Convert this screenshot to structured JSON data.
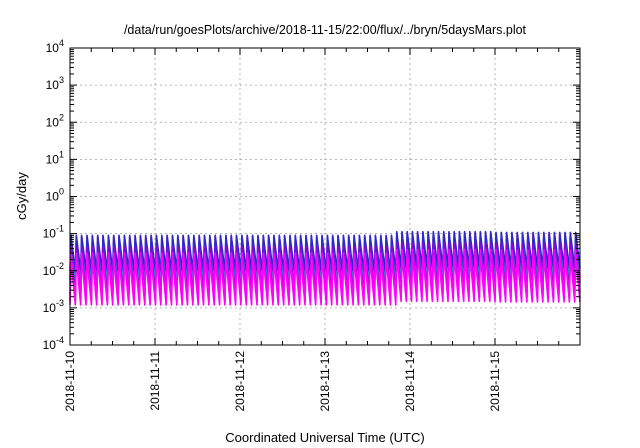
{
  "chart_data": {
    "type": "line",
    "title": "/data/run/goesPlots/archive/2018-11-15/22:00/flux/../bryn/5daysMars.plot",
    "xlabel": "Coordinated Universal Time (UTC)",
    "ylabel": "cGy/day",
    "yscale": "log",
    "ylim": [
      0.0001,
      10000
    ],
    "xlim": [
      "2018-11-10T00:00",
      "2018-11-16T00:00"
    ],
    "x_ticks": [
      "2018-11-10",
      "2018-11-11",
      "2018-11-12",
      "2018-11-13",
      "2018-11-14",
      "2018-11-15"
    ],
    "y_ticks": [
      {
        "value": 0.0001,
        "base": "10",
        "exp": "-4"
      },
      {
        "value": 0.001,
        "base": "10",
        "exp": "-3"
      },
      {
        "value": 0.01,
        "base": "10",
        "exp": "-2"
      },
      {
        "value": 0.1,
        "base": "10",
        "exp": "-1"
      },
      {
        "value": 1,
        "base": "10",
        "exp": "0"
      },
      {
        "value": 10,
        "base": "10",
        "exp": "1"
      },
      {
        "value": 100,
        "base": "10",
        "exp": "2"
      },
      {
        "value": 1000,
        "base": "10",
        "exp": "3"
      },
      {
        "value": 10000,
        "base": "10",
        "exp": "4"
      }
    ],
    "grid": true,
    "legend": "none",
    "pattern": {
      "cycle_hours": 1.5,
      "segments": [
        {
          "from": "2018-11-10T00:00",
          "to": "2018-11-13T20:00",
          "peak_scale": 1.0
        },
        {
          "from": "2018-11-13T20:00",
          "to": "2018-11-15T00:00",
          "peak_scale": 1.25
        },
        {
          "from": "2018-11-15T00:00",
          "to": "2018-11-16T00:00",
          "peak_scale": 1.2
        }
      ]
    },
    "series": [
      {
        "color": "#ff0000",
        "peak": 0.085,
        "trough": 0.0055
      },
      {
        "color": "#00b0b0",
        "peak": 0.06,
        "trough": 0.004
      },
      {
        "color": "#2a2ad0",
        "peak": 0.09,
        "trough": 0.01
      },
      {
        "color": "#9400d3",
        "peak": 0.045,
        "trough": 0.0022
      },
      {
        "color": "#ff00ff",
        "peak": 0.03,
        "trough": 0.0015
      },
      {
        "color": "#ff00ff",
        "peak": 0.022,
        "trough": 0.0012
      }
    ]
  }
}
